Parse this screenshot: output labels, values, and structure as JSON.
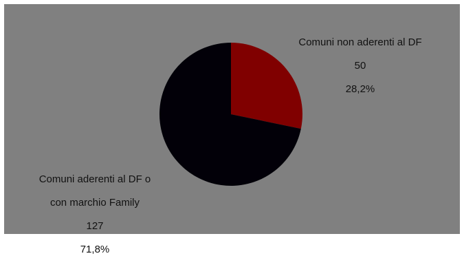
{
  "chart_data": {
    "type": "pie",
    "title": "",
    "slices": [
      {
        "label": "Comuni non aderenti al DF",
        "value": 50,
        "percent_label": "28,2%",
        "color": "#800000"
      },
      {
        "label": "Comuni aderenti al DF o con marchio Family",
        "value": 127,
        "percent_label": "71,8%",
        "color": "#020008"
      }
    ],
    "data_labels": [
      {
        "lines": [
          "Comuni non aderenti al DF",
          "50",
          "28,2%"
        ]
      },
      {
        "lines": [
          "Comuni aderenti al DF o",
          "con marchio Family",
          "127",
          "71,8%"
        ]
      }
    ],
    "background_color": "#808080",
    "legend": "none"
  }
}
